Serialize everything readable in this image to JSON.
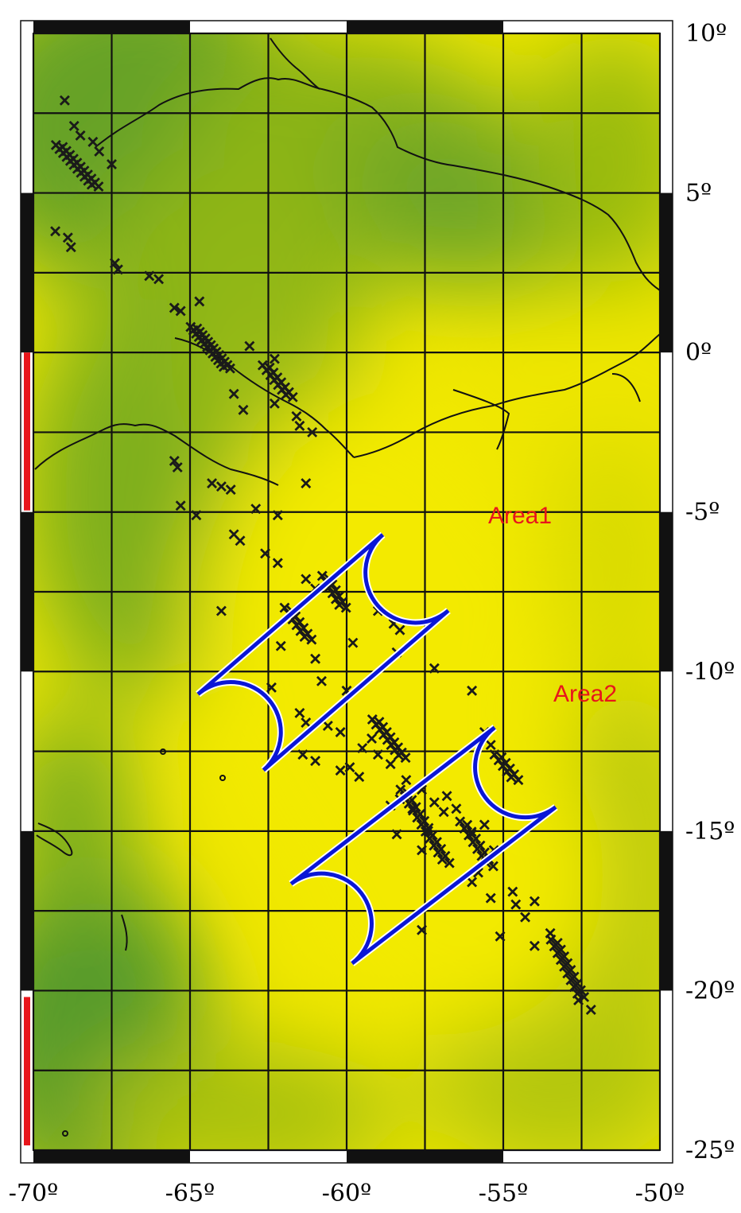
{
  "map": {
    "lon_range": [
      -70,
      -50
    ],
    "lat_range": [
      -25,
      10
    ],
    "grid_step_deg": 2.5,
    "projection": "equirectangular",
    "colors": {
      "field_yellow": "#eee600",
      "field_green": "#5a9b22",
      "frame": "#111111",
      "ellipse": "#0a16d6",
      "label": "#e8161b",
      "scale_bar": "#e8161b"
    }
  },
  "axes": {
    "lat_ticks": [
      {
        "value": 10,
        "label": "10º"
      },
      {
        "value": 5,
        "label": "5º"
      },
      {
        "value": 0,
        "label": "0º"
      },
      {
        "value": -5,
        "label": "-5º"
      },
      {
        "value": -10,
        "label": "-10º"
      },
      {
        "value": -15,
        "label": "-15º"
      },
      {
        "value": -20,
        "label": "-20º"
      },
      {
        "value": -25,
        "label": "-25º"
      }
    ],
    "lon_ticks": [
      {
        "value": -70,
        "label": "-70º"
      },
      {
        "value": -65,
        "label": "-65º"
      },
      {
        "value": -60,
        "label": "-60º"
      },
      {
        "value": -55,
        "label": "-55º"
      },
      {
        "value": -50,
        "label": "-50º"
      }
    ]
  },
  "areas": [
    {
      "label": "Area1",
      "end_a": [
        -57.8,
        -6.9
      ],
      "end_b": [
        -63.7,
        -11.9
      ],
      "radius_deg": 1.6
    },
    {
      "label": "Area2",
      "end_a": [
        -54.3,
        -13.0
      ],
      "end_b": [
        -60.8,
        -17.9
      ],
      "radius_deg": 1.6
    }
  ],
  "events": {
    "dense_tracks": [
      {
        "from": [
          -69.2,
          6.5
        ],
        "to": [
          -68.0,
          5.2
        ],
        "n": 22
      },
      {
        "from": [
          -64.9,
          0.8
        ],
        "to": [
          -63.8,
          -0.5
        ],
        "n": 26
      },
      {
        "from": [
          -62.6,
          -0.4
        ],
        "to": [
          -61.8,
          -1.4
        ],
        "n": 14
      },
      {
        "from": [
          -60.7,
          -7.0
        ],
        "to": [
          -60.1,
          -8.0
        ],
        "n": 12
      },
      {
        "from": [
          -61.9,
          -8.0
        ],
        "to": [
          -61.2,
          -9.0
        ],
        "n": 12
      },
      {
        "from": [
          -59.1,
          -11.5
        ],
        "to": [
          -58.2,
          -12.7
        ],
        "n": 16
      },
      {
        "from": [
          -58.2,
          -13.7
        ],
        "to": [
          -56.8,
          -16.0
        ],
        "n": 22
      },
      {
        "from": [
          -56.3,
          -14.7
        ],
        "to": [
          -55.4,
          -16.1
        ],
        "n": 14
      },
      {
        "from": [
          -55.2,
          -12.6
        ],
        "to": [
          -54.6,
          -13.4
        ],
        "n": 10
      },
      {
        "from": [
          -53.4,
          -18.4
        ],
        "to": [
          -52.5,
          -20.2
        ],
        "n": 18
      }
    ],
    "scattered": [
      [
        -69.0,
        7.9
      ],
      [
        -68.7,
        7.1
      ],
      [
        -68.5,
        6.8
      ],
      [
        -68.1,
        6.6
      ],
      [
        -67.9,
        6.3
      ],
      [
        -67.5,
        5.9
      ],
      [
        -69.3,
        3.8
      ],
      [
        -68.9,
        3.6
      ],
      [
        -68.8,
        3.3
      ],
      [
        -67.4,
        2.8
      ],
      [
        -67.3,
        2.6
      ],
      [
        -66.3,
        2.4
      ],
      [
        -66.0,
        2.3
      ],
      [
        -65.5,
        1.4
      ],
      [
        -65.3,
        1.3
      ],
      [
        -64.7,
        1.6
      ],
      [
        -63.1,
        0.2
      ],
      [
        -62.3,
        -0.2
      ],
      [
        -63.6,
        -1.3
      ],
      [
        -62.3,
        -1.6
      ],
      [
        -61.6,
        -2.0
      ],
      [
        -63.3,
        -1.8
      ],
      [
        -61.5,
        -2.3
      ],
      [
        -61.1,
        -2.5
      ],
      [
        -65.5,
        -3.4
      ],
      [
        -65.4,
        -3.6
      ],
      [
        -64.3,
        -4.1
      ],
      [
        -64.0,
        -4.2
      ],
      [
        -63.7,
        -4.3
      ],
      [
        -61.3,
        -4.1
      ],
      [
        -65.3,
        -4.8
      ],
      [
        -64.8,
        -5.1
      ],
      [
        -62.9,
        -4.9
      ],
      [
        -62.2,
        -5.1
      ],
      [
        -63.6,
        -5.7
      ],
      [
        -63.4,
        -5.9
      ],
      [
        -62.2,
        -6.6
      ],
      [
        -62.6,
        -6.3
      ],
      [
        -61.3,
        -7.1
      ],
      [
        -61.0,
        -7.4
      ],
      [
        -64.0,
        -8.1
      ],
      [
        -59.8,
        -9.1
      ],
      [
        -59.0,
        -8.1
      ],
      [
        -58.5,
        -8.5
      ],
      [
        -58.3,
        -8.7
      ],
      [
        -58.4,
        -9.4
      ],
      [
        -57.2,
        -9.9
      ],
      [
        -56.0,
        -10.6
      ],
      [
        -62.4,
        -10.5
      ],
      [
        -62.1,
        -9.2
      ],
      [
        -61.0,
        -9.6
      ],
      [
        -60.8,
        -10.3
      ],
      [
        -60.0,
        -10.6
      ],
      [
        -61.5,
        -11.3
      ],
      [
        -61.3,
        -11.6
      ],
      [
        -60.6,
        -11.7
      ],
      [
        -60.2,
        -11.9
      ],
      [
        -59.5,
        -12.4
      ],
      [
        -59.0,
        -12.6
      ],
      [
        -58.6,
        -12.9
      ],
      [
        -58.1,
        -13.4
      ],
      [
        -57.6,
        -13.7
      ],
      [
        -57.2,
        -14.1
      ],
      [
        -56.9,
        -14.4
      ],
      [
        -56.5,
        -14.3
      ],
      [
        -56.0,
        -15.1
      ],
      [
        -55.6,
        -14.8
      ],
      [
        -55.3,
        -15.6
      ],
      [
        -55.8,
        -16.3
      ],
      [
        -56.0,
        -16.6
      ],
      [
        -55.4,
        -17.1
      ],
      [
        -54.7,
        -16.9
      ],
      [
        -54.6,
        -17.3
      ],
      [
        -54.3,
        -17.7
      ],
      [
        -54.0,
        -17.2
      ],
      [
        -53.5,
        -18.2
      ],
      [
        -54.0,
        -18.6
      ],
      [
        -55.1,
        -18.3
      ],
      [
        -57.4,
        -15.0
      ],
      [
        -56.8,
        -13.9
      ],
      [
        -57.9,
        -14.3
      ],
      [
        -58.3,
        -14.0
      ],
      [
        -58.6,
        -14.2
      ],
      [
        -59.6,
        -13.3
      ],
      [
        -59.9,
        -13.0
      ],
      [
        -60.2,
        -13.1
      ],
      [
        -61.0,
        -12.8
      ],
      [
        -61.4,
        -12.6
      ],
      [
        -58.4,
        -15.1
      ],
      [
        -57.6,
        -15.6
      ],
      [
        -55.4,
        -12.3
      ],
      [
        -57.6,
        -18.1
      ],
      [
        -52.6,
        -20.3
      ],
      [
        -52.2,
        -20.6
      ],
      [
        -55.6,
        -11.9
      ],
      [
        -59.2,
        -12.1
      ]
    ]
  },
  "labels": {
    "area1": "Area1",
    "area2": "Area2"
  }
}
